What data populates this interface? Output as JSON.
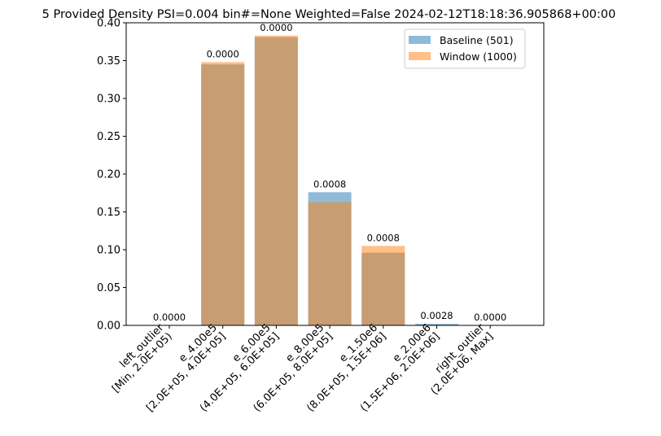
{
  "chart_data": {
    "type": "bar",
    "title": "5 Provided Density PSI=0.004 bin#=None Weighted=False 2024-02-12T18:18:36.905868+00:00",
    "xlabel": "",
    "ylabel": "",
    "ylim": [
      0,
      0.4
    ],
    "yticks": [
      "0.00",
      "0.05",
      "0.10",
      "0.15",
      "0.20",
      "0.25",
      "0.30",
      "0.35",
      "0.40"
    ],
    "categories": [
      [
        "left_outlier",
        "[Min, 2.0E+05)"
      ],
      [
        "e_4.00e5",
        "[2.0E+05, 4.0E+05]"
      ],
      [
        "e_6.00e5",
        "(4.0E+05, 6.0E+05]"
      ],
      [
        "e_8.00e5",
        "(6.0E+05, 8.0E+05]"
      ],
      [
        "e_1.50e6",
        "(8.0E+05, 1.5E+06]"
      ],
      [
        "e_2.00e6",
        "(1.5E+06, 2.0E+06]"
      ],
      [
        "right_outlier",
        "(2.0E+06, Max]"
      ]
    ],
    "series": [
      {
        "name": "Baseline (501)",
        "color": "#1f77b4",
        "opacity": 0.5,
        "values": [
          0.0,
          0.345,
          0.381,
          0.176,
          0.096,
          0.002,
          0.0
        ]
      },
      {
        "name": "Window (1000)",
        "color": "#ff7f0e",
        "opacity": 0.5,
        "values": [
          0.0,
          0.348,
          0.383,
          0.163,
          0.105,
          0.0,
          0.0
        ]
      }
    ],
    "data_labels": [
      "0.0000",
      "0.0000",
      "0.0000",
      "0.0008",
      "0.0008",
      "0.0028",
      "0.0000"
    ],
    "legend_position": "top-right",
    "grid": false
  }
}
